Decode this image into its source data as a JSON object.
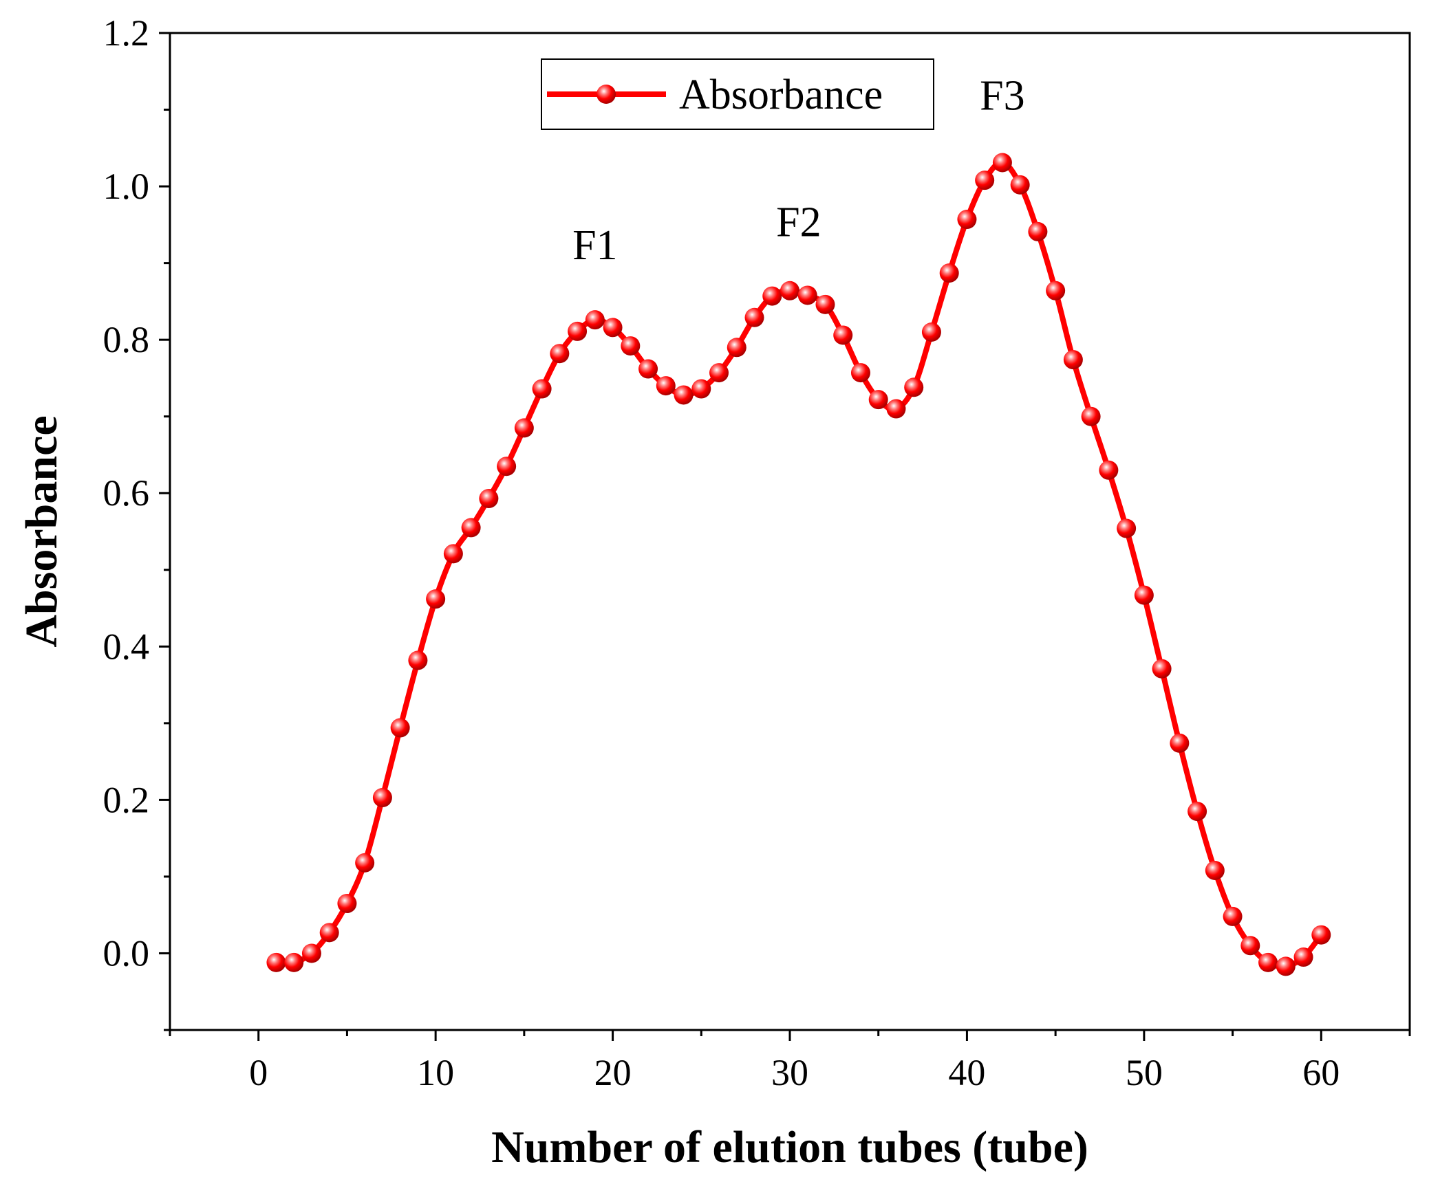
{
  "chart_data": {
    "type": "line",
    "title": "",
    "xlabel": "Number of elution tubes (tube)",
    "ylabel": "Absorbance",
    "xlim": [
      -5,
      65
    ],
    "ylim": [
      -0.1,
      1.2
    ],
    "xticks": [
      0,
      10,
      20,
      30,
      40,
      50,
      60
    ],
    "xtick_labels": [
      "0",
      "10",
      "20",
      "30",
      "40",
      "50",
      "60"
    ],
    "yticks": [
      0.0,
      0.2,
      0.4,
      0.6,
      0.8,
      1.0,
      1.2
    ],
    "ytick_labels": [
      "0.0",
      "0.2",
      "0.4",
      "0.6",
      "0.8",
      "1.0",
      "1.2"
    ],
    "grid": false,
    "legend": {
      "position": "top-left",
      "entries": [
        "Absorbance"
      ]
    },
    "series": [
      {
        "name": "Absorbance",
        "color": "#ff0000",
        "x": [
          1,
          2,
          3,
          4,
          5,
          6,
          7,
          8,
          9,
          10,
          11,
          12,
          13,
          14,
          15,
          16,
          17,
          18,
          19,
          20,
          21,
          22,
          23,
          24,
          25,
          26,
          27,
          28,
          29,
          30,
          31,
          32,
          33,
          34,
          35,
          36,
          37,
          38,
          39,
          40,
          41,
          42,
          43,
          44,
          45,
          46,
          47,
          48,
          49,
          50,
          51,
          52,
          53,
          54,
          55,
          56,
          57,
          58,
          59,
          60
        ],
        "y": [
          -0.012,
          -0.012,
          0.0,
          0.027,
          0.065,
          0.118,
          0.203,
          0.294,
          0.382,
          0.462,
          0.521,
          0.555,
          0.593,
          0.635,
          0.685,
          0.736,
          0.782,
          0.811,
          0.826,
          0.816,
          0.792,
          0.762,
          0.74,
          0.728,
          0.736,
          0.757,
          0.79,
          0.829,
          0.857,
          0.864,
          0.858,
          0.846,
          0.806,
          0.757,
          0.722,
          0.71,
          0.738,
          0.81,
          0.887,
          0.957,
          1.008,
          1.031,
          1.002,
          0.941,
          0.864,
          0.774,
          0.7,
          0.63,
          0.554,
          0.467,
          0.371,
          0.274,
          0.185,
          0.108,
          0.048,
          0.01,
          -0.012,
          -0.017,
          -0.005,
          0.024
        ]
      }
    ],
    "annotations": [
      {
        "text": "F1",
        "x": 19,
        "y": 0.905
      },
      {
        "text": "F2",
        "x": 30.5,
        "y": 0.935
      },
      {
        "text": "F3",
        "x": 42,
        "y": 1.1
      }
    ]
  }
}
